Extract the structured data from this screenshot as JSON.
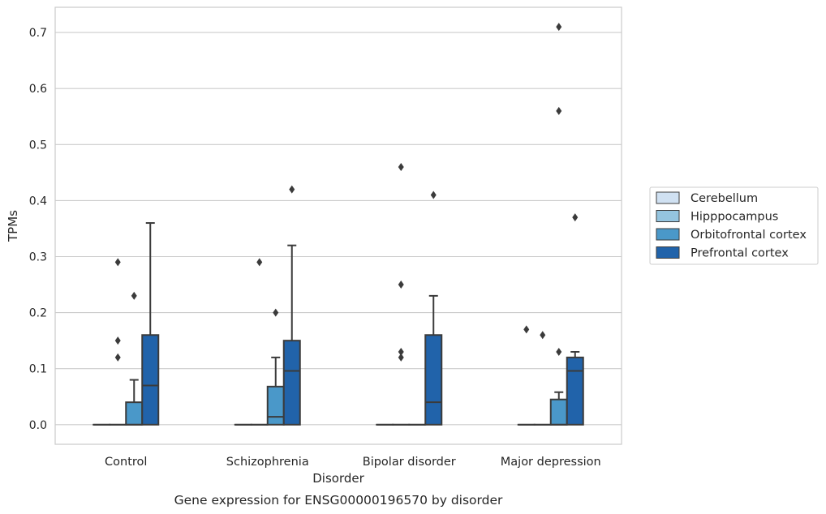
{
  "chart_data": {
    "type": "box",
    "caption": "Gene expression for ENSG00000196570 by disorder",
    "xlabel": "Disorder",
    "ylabel": "TPMs",
    "ylim": [
      -0.035,
      0.745
    ],
    "yticks": [
      0.0,
      0.1,
      0.2,
      0.3,
      0.4,
      0.5,
      0.6,
      0.7
    ],
    "ytick_labels": [
      "0.0",
      "0.1",
      "0.2",
      "0.3",
      "0.4",
      "0.5",
      "0.6",
      "0.7"
    ],
    "grid": true,
    "legend_position": "right",
    "categories": [
      "Control",
      "Schizophrenia",
      "Bipolar disorder",
      "Major depression"
    ],
    "series": [
      {
        "name": "Cerebellum",
        "color": "#d0e1f2",
        "boxes": [
          {
            "q1": 0,
            "median": 0,
            "q3": 0,
            "whislo": 0,
            "whishi": 0,
            "fliers": []
          },
          {
            "q1": 0,
            "median": 0,
            "q3": 0,
            "whislo": 0,
            "whishi": 0,
            "fliers": []
          },
          {
            "q1": 0,
            "median": 0,
            "q3": 0,
            "whislo": 0,
            "whishi": 0,
            "fliers": []
          },
          {
            "q1": 0,
            "median": 0,
            "q3": 0,
            "whislo": 0,
            "whishi": 0,
            "fliers": [
              0.17
            ]
          }
        ]
      },
      {
        "name": "Hipppocampus",
        "color": "#94c4df",
        "boxes": [
          {
            "q1": 0,
            "median": 0,
            "q3": 0,
            "whislo": 0,
            "whishi": 0,
            "fliers": [
              0.29,
              0.15,
              0.12
            ]
          },
          {
            "q1": 0,
            "median": 0,
            "q3": 0,
            "whislo": 0,
            "whishi": 0,
            "fliers": [
              0.29
            ]
          },
          {
            "q1": 0,
            "median": 0,
            "q3": 0,
            "whislo": 0,
            "whishi": 0,
            "fliers": [
              0.46,
              0.25,
              0.13,
              0.12
            ]
          },
          {
            "q1": 0,
            "median": 0,
            "q3": 0,
            "whislo": 0,
            "whishi": 0,
            "fliers": [
              0.16
            ]
          }
        ]
      },
      {
        "name": "Orbitofrontal cortex",
        "color": "#4a98c9",
        "boxes": [
          {
            "q1": 0,
            "median": 0,
            "q3": 0.04,
            "whislo": 0,
            "whishi": 0.08,
            "fliers": [
              0.23
            ]
          },
          {
            "q1": 0,
            "median": 0.014,
            "q3": 0.068,
            "whislo": 0,
            "whishi": 0.12,
            "fliers": [
              0.2
            ]
          },
          {
            "q1": 0,
            "median": 0,
            "q3": 0,
            "whislo": 0,
            "whishi": 0,
            "fliers": []
          },
          {
            "q1": 0,
            "median": 0,
            "q3": 0.045,
            "whislo": 0,
            "whishi": 0.058,
            "fliers": [
              0.71,
              0.56,
              0.13
            ]
          }
        ]
      },
      {
        "name": "Prefrontal cortex",
        "color": "#2163aa",
        "boxes": [
          {
            "q1": 0,
            "median": 0.07,
            "q3": 0.16,
            "whislo": 0,
            "whishi": 0.36,
            "fliers": []
          },
          {
            "q1": 0,
            "median": 0.096,
            "q3": 0.15,
            "whislo": 0,
            "whishi": 0.32,
            "fliers": [
              0.42
            ]
          },
          {
            "q1": 0,
            "median": 0.04,
            "q3": 0.16,
            "whislo": 0,
            "whishi": 0.23,
            "fliers": [
              0.41
            ]
          },
          {
            "q1": 0,
            "median": 0.096,
            "q3": 0.12,
            "whislo": 0,
            "whishi": 0.13,
            "fliers": [
              0.37
            ]
          }
        ]
      }
    ]
  }
}
